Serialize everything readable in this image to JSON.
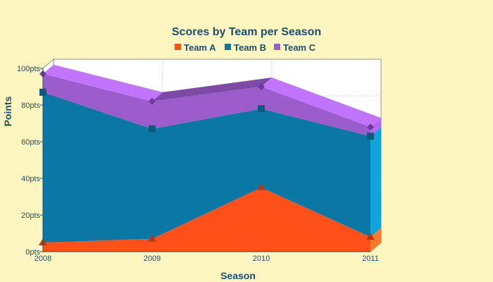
{
  "chart_data": {
    "type": "area",
    "stacked": true,
    "title": "Scores by Team per Season",
    "xlabel": "Season",
    "ylabel": "Points",
    "x": [
      "2008",
      "2009",
      "2010",
      "2011"
    ],
    "ylim": [
      0,
      100
    ],
    "y_ticks": [
      "0pts",
      "20pts",
      "40pts",
      "60pts",
      "80pts",
      "100pts"
    ],
    "legend_position": "top",
    "grid": true,
    "three_d": true,
    "series": [
      {
        "name": "Team A",
        "values": [
          5,
          7,
          35,
          8
        ],
        "color": "#ff5019",
        "side_color": "#ff7a2a",
        "marker": "triangle",
        "marker_color": "#b93a0e"
      },
      {
        "name": "Team B",
        "values": [
          82,
          60,
          43,
          55
        ],
        "color": "#0b77a5",
        "side_color": "#12a3d8",
        "marker": "square",
        "marker_color": "#0d5a7e"
      },
      {
        "name": "Team C",
        "values": [
          10,
          15,
          12,
          5
        ],
        "color": "#9b5ccc",
        "side_color": "#b867f2",
        "top_color": "#c074ff",
        "marker": "diamond",
        "marker_color": "#6f3a99"
      }
    ]
  }
}
